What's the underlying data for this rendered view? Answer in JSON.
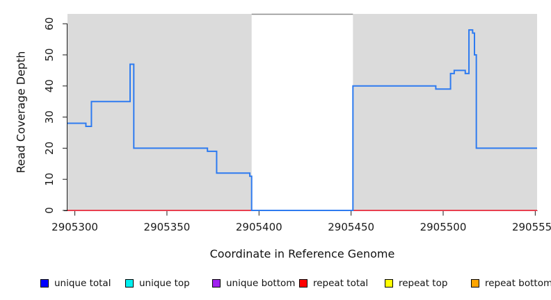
{
  "chart_data": {
    "type": "line",
    "subtype": "step-coverage",
    "xlabel": "Coordinate in Reference Genome",
    "ylabel": "Read Coverage Depth",
    "xlim": [
      2905296,
      2905551
    ],
    "ylim": [
      0,
      63
    ],
    "x_ticks": [
      2905300,
      2905350,
      2905400,
      2905450,
      2905500,
      2905550
    ],
    "y_ticks": [
      0,
      10,
      20,
      30,
      40,
      50,
      60
    ],
    "grid": false,
    "region_color": "#dbdbdb",
    "gap_border_color": "#8c8c8c",
    "axis_color": "#1a1a1a",
    "shaded_regions": [
      [
        2905296,
        2905396
      ],
      [
        2905451,
        2905551
      ]
    ],
    "series": [
      {
        "name": "repeat total",
        "line_color": "#e8404f",
        "width": 2,
        "points": [
          [
            2905296,
            0
          ]
        ]
      },
      {
        "name": "unique total",
        "line_color": "#2e7bf0",
        "width": 2,
        "points": [
          [
            2905296,
            28
          ],
          [
            2905306,
            27
          ],
          [
            2905309,
            35
          ],
          [
            2905330,
            47
          ],
          [
            2905332,
            20
          ],
          [
            2905372,
            19
          ],
          [
            2905377,
            12
          ],
          [
            2905395,
            11
          ],
          [
            2905396,
            0
          ],
          [
            2905451,
            40
          ],
          [
            2905496,
            39
          ],
          [
            2905504,
            44
          ],
          [
            2905506,
            45
          ],
          [
            2905512,
            44
          ],
          [
            2905514,
            58
          ],
          [
            2905516,
            57
          ],
          [
            2905517,
            50
          ],
          [
            2905518,
            20
          ]
        ]
      }
    ],
    "legend": [
      {
        "label": "unique total",
        "color": "#0000ff"
      },
      {
        "label": "unique top",
        "color": "#00f0f0"
      },
      {
        "label": "unique bottom",
        "color": "#a020f0"
      },
      {
        "label": "repeat total",
        "color": "#ff0000"
      },
      {
        "label": "repeat top",
        "color": "#ffff00"
      },
      {
        "label": "repeat bottom",
        "color": "#ffa500"
      }
    ],
    "legend_position": "bottom"
  }
}
